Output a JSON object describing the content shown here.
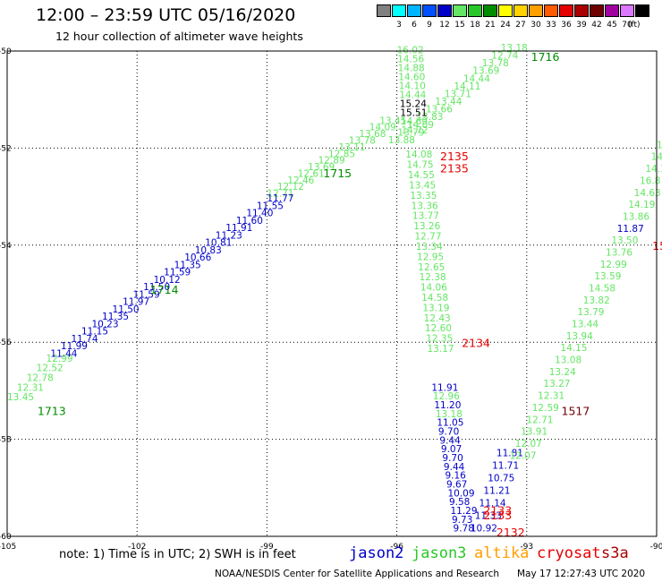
{
  "header": {
    "title": "12:00 – 23:59 UTC 05/16/2020",
    "subtitle": "12 hour collection of altimeter wave heights"
  },
  "scale": {
    "unit": "(ft)",
    "swatches": [
      {
        "color": "#808080",
        "label": ""
      },
      {
        "color": "#00ffff",
        "label": "3"
      },
      {
        "color": "#00b4ff",
        "label": "6"
      },
      {
        "color": "#0050ff",
        "label": "9"
      },
      {
        "color": "#0000c8",
        "label": "12"
      },
      {
        "color": "#64e664",
        "label": "15"
      },
      {
        "color": "#28c828",
        "label": "18"
      },
      {
        "color": "#008c00",
        "label": "21"
      },
      {
        "color": "#ffff00",
        "label": "24"
      },
      {
        "color": "#ffd200",
        "label": "27"
      },
      {
        "color": "#ffa000",
        "label": "30"
      },
      {
        "color": "#ff5a00",
        "label": "33"
      },
      {
        "color": "#e60000",
        "label": "36"
      },
      {
        "color": "#aa0000",
        "label": "39"
      },
      {
        "color": "#6e0000",
        "label": "42"
      },
      {
        "color": "#a000a0",
        "label": "45"
      },
      {
        "color": "#dc78ff",
        "label": "70"
      },
      {
        "color": "#000000",
        "label": ""
      }
    ]
  },
  "axes": {
    "x_ticks": [
      "-105",
      "-102",
      "-99",
      "-96",
      "-93",
      "-90"
    ],
    "y_ticks": [
      "-50",
      "-52",
      "-54",
      "-56",
      "-58",
      "-60"
    ]
  },
  "colors": {
    "jason2": "#0000c8",
    "jason3": "#28c828",
    "altika": "#ffa000",
    "cryosat": "#e60000",
    "s3a": "#aa0000",
    "light_green": "#64e664",
    "dark_green": "#008c00"
  },
  "tracks": {
    "jason2_diag": {
      "color": "#0000c8",
      "lon": [
        -99,
        -104.0
      ],
      "lat": [
        -53.1,
        -56.3
      ],
      "values": [
        "11.77",
        "11.55",
        "11.40",
        "11.60",
        "11.91",
        "11.23",
        "10.81",
        "10.83",
        "10.66",
        "11.35",
        "11.59",
        "10.12",
        "11.50",
        "11.59",
        "11.97",
        "11.50",
        "11.35",
        "10.23",
        "11.15",
        "11.74",
        "11.99",
        "11.44"
      ]
    },
    "jason3_diag_upper": {
      "color": "#64e664",
      "lon": [
        -96.4,
        -99.0
      ],
      "lat": [
        -51.5,
        -53.0
      ],
      "values": [
        "13.45",
        "14.09",
        "13.68",
        "13.78",
        "13.11",
        "12.85",
        "12.89",
        "13.69",
        "12.61",
        "12.46",
        "12.12",
        "12.71"
      ]
    },
    "jason3_diag_lower": {
      "color": "#64e664",
      "lon": [
        -104.1,
        -105.0
      ],
      "lat": [
        -56.4,
        -57.2
      ],
      "values": [
        "12.99",
        "12.52",
        "12.78",
        "12.31",
        "13.45"
      ]
    },
    "top_fan": {
      "color": "#64e664",
      "lon": [
        -93.6,
        -96.2
      ],
      "lat": [
        -50.0,
        -51.9
      ],
      "values": [
        "13.18",
        "12.74",
        "13.78",
        "13.69",
        "14.44",
        "14.11",
        "13.71",
        "13.44",
        "13.66",
        "13.83",
        "14.09",
        "13.79",
        "13.88"
      ]
    },
    "col_upper_green": {
      "color": "#64e664",
      "lon": [
        -96.0,
        -95.9
      ],
      "lat": [
        -50.05,
        -51.7
      ],
      "values": [
        "16.02",
        "14.56",
        "14.88",
        "14.60",
        "14.10",
        "14.44",
        "15.24",
        "15.51",
        "14.69",
        "14.72"
      ]
    },
    "col_green_main": {
      "color": "#64e664",
      "lon": [
        -95.8,
        -95.3
      ],
      "lat": [
        -52.2,
        -56.2
      ],
      "values": [
        "14.08",
        "14.75",
        "14.55",
        "13.45",
        "13.35",
        "13.36",
        "13.77",
        "13.26",
        "12.77",
        "13.34",
        "12.95",
        "12.65",
        "12.38",
        "14.06",
        "14.58",
        "13.19",
        "12.43",
        "12.60",
        "12.35",
        "13.17"
      ]
    },
    "col_blue_lower": {
      "color": "#0000c8",
      "lon": [
        -95.2,
        -94.7
      ],
      "lat": [
        -57.0,
        -59.9
      ],
      "values": [
        "11.91",
        "12.96",
        "11.20",
        "13.18",
        "11.05",
        "9.70",
        "9.44",
        "9.07",
        "9.70",
        "9.44",
        "9.16",
        "9.67",
        "10.09",
        "9.58",
        "11.29",
        "9.73",
        "9.78"
      ]
    },
    "col_blue_lower_green_idx": [
      1,
      3
    ],
    "col_blue_right": {
      "color": "#0000c8",
      "lon": [
        -93.7,
        -94.3
      ],
      "lat": [
        -58.35,
        -59.9
      ],
      "values": [
        "11.81",
        "11.71",
        "10.75",
        "11.21",
        "11.14",
        "11.33",
        "10.92"
      ]
    },
    "right_track": {
      "color": "#64e664",
      "lon": [
        -90.0,
        -93.4
      ],
      "lat": [
        -52.0,
        -58.4
      ],
      "values": [
        "14.7",
        "14.2",
        "14.19",
        "16.8",
        "14.63",
        "14.19",
        "13.86",
        "11.87",
        "13.50",
        "13.76",
        "12.99",
        "13.59",
        "14.58",
        "13.82",
        "13.79",
        "13.44",
        "13.94",
        "14.15",
        "13.08",
        "13.24",
        "13.27",
        "12.31",
        "12.59",
        "12.71",
        "13.91",
        "12.07",
        "12.07"
      ]
    },
    "right_track_blue_idx": [
      7
    ]
  },
  "time_labels": [
    {
      "text": "1716",
      "lon": -92.9,
      "lat": -50.2,
      "color": "#008c00"
    },
    {
      "text": "1715",
      "lon": -97.7,
      "lat": -52.6,
      "color": "#008c00"
    },
    {
      "text": "1714",
      "lon": -101.7,
      "lat": -55.0,
      "color": "#008c00"
    },
    {
      "text": "1713",
      "lon": -104.3,
      "lat": -57.5,
      "color": "#008c00"
    },
    {
      "text": "2135",
      "lon": -95.0,
      "lat": -52.25,
      "color": "#e60000"
    },
    {
      "text": "2135",
      "lon": -95.0,
      "lat": -52.5,
      "color": "#e60000"
    },
    {
      "text": "2134",
      "lon": -94.5,
      "lat": -56.1,
      "color": "#e60000"
    },
    {
      "text": "2133",
      "lon": -94.0,
      "lat": -59.55,
      "color": "#e60000"
    },
    {
      "text": "2133",
      "lon": -94.0,
      "lat": -59.65,
      "color": "#e60000"
    },
    {
      "text": "2132",
      "lon": -93.7,
      "lat": -60.0,
      "color": "#e60000"
    },
    {
      "text": "1517",
      "lon": -92.2,
      "lat": -57.5,
      "color": "#6e0000"
    },
    {
      "text": "15",
      "lon": -90.1,
      "lat": -54.1,
      "color": "#e60000"
    }
  ],
  "footer": {
    "note": "note:  1) Time is in UTC;  2) SWH is in feet",
    "satellites": [
      {
        "name": "jason2",
        "color": "#0000c8"
      },
      {
        "name": "jason3",
        "color": "#28c828"
      },
      {
        "name": "altika",
        "color": "#ffa000"
      },
      {
        "name": "cryosat",
        "color": "#e60000"
      },
      {
        "name": "s3a",
        "color": "#aa0000"
      }
    ],
    "credit": "NOAA/NESDIS Center for Satellite Applications and Research",
    "timestamp": "May 17 12:27:43 UTC 2020"
  }
}
